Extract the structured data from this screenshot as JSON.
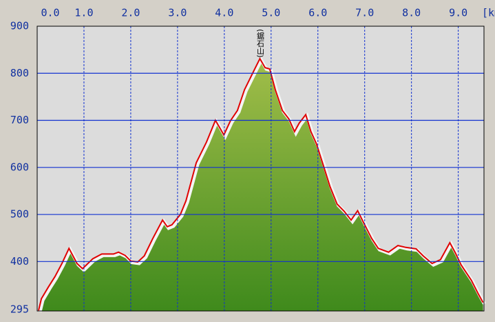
{
  "chart_data": {
    "type": "area",
    "x": [
      0.03,
      0.09,
      0.24,
      0.38,
      0.53,
      0.68,
      0.76,
      0.85,
      0.97,
      1.19,
      1.38,
      1.63,
      1.74,
      1.88,
      2.0,
      2.15,
      2.29,
      2.47,
      2.68,
      2.78,
      2.88,
      3.06,
      3.18,
      3.4,
      3.62,
      3.81,
      3.99,
      4.13,
      4.28,
      4.43,
      4.65,
      4.76,
      4.87,
      4.97,
      5.09,
      5.24,
      5.38,
      5.5,
      5.6,
      5.74,
      5.85,
      5.97,
      6.12,
      6.26,
      6.41,
      6.56,
      6.71,
      6.85,
      7.0,
      7.15,
      7.29,
      7.51,
      7.71,
      7.88,
      8.1,
      8.25,
      8.44,
      8.62,
      8.82,
      8.94,
      9.06,
      9.28,
      9.43,
      9.53
    ],
    "values": [
      296,
      321,
      346,
      368,
      396,
      428,
      413,
      396,
      385,
      406,
      416,
      416,
      420,
      413,
      401,
      399,
      412,
      449,
      488,
      474,
      478,
      500,
      529,
      610,
      654,
      700,
      669,
      699,
      721,
      765,
      809,
      831,
      812,
      809,
      765,
      721,
      703,
      676,
      694,
      712,
      676,
      650,
      603,
      559,
      522,
      507,
      488,
      508,
      478,
      449,
      428,
      420,
      434,
      430,
      427,
      412,
      396,
      404,
      440,
      418,
      393,
      360,
      331,
      313
    ],
    "color": "#e00000",
    "fill": "#6f9a2c",
    "xlim": [
      0,
      9.55
    ],
    "ylim": [
      295,
      900
    ],
    "xticks": [
      {
        "value": 0,
        "label": "0.0"
      },
      {
        "value": 1,
        "label": "1.0"
      },
      {
        "value": 2,
        "label": "2.0"
      },
      {
        "value": 3,
        "label": "3.0"
      },
      {
        "value": 4,
        "label": "4.0"
      },
      {
        "value": 5,
        "label": "5.0"
      },
      {
        "value": 6,
        "label": "6.0"
      },
      {
        "value": 7,
        "label": "7.0"
      },
      {
        "value": 8,
        "label": "8.0"
      },
      {
        "value": 9,
        "label": "9.0"
      }
    ],
    "x_label": "[km",
    "yticks": [
      295,
      400,
      500,
      600,
      700,
      800,
      900
    ],
    "annotation": {
      "text": "(鋸石山)",
      "x": 4.76
    },
    "grid": true
  }
}
